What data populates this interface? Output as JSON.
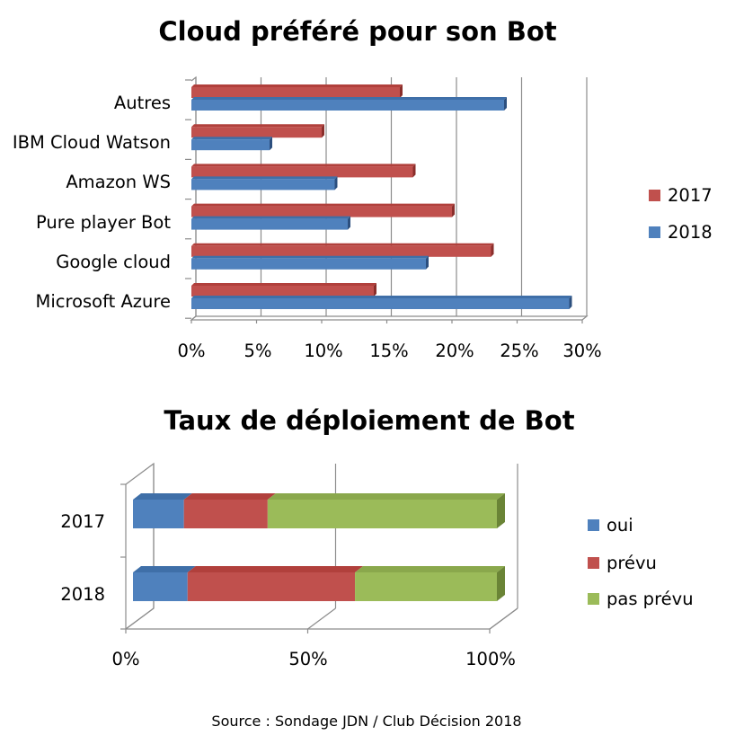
{
  "footer": {
    "source": "Source : Sondage JDN / Club Décision 2018"
  },
  "colors": {
    "red": "#c0504d",
    "red_top": "#b1403c",
    "red_side": "#8a2e2b",
    "blue": "#4f81bd",
    "blue_top": "#3f6fa8",
    "blue_side": "#2c4f7e",
    "green": "#9bbb59",
    "green_top": "#8aa84c",
    "green_side": "#6a8436",
    "grid": "#8c8c8c"
  },
  "chart_data": [
    {
      "type": "bar",
      "orientation": "horizontal",
      "title": "Cloud préféré pour son Bot",
      "categories": [
        "Autres",
        "IBM Cloud Watson",
        "Amazon WS",
        "Pure player Bot",
        "Google cloud",
        "Microsoft Azure"
      ],
      "series": [
        {
          "name": "2017",
          "color": "#c0504d",
          "values": [
            16,
            10,
            17,
            20,
            23,
            14
          ]
        },
        {
          "name": "2018",
          "color": "#4f81bd",
          "values": [
            24,
            6,
            11,
            12,
            18,
            29
          ]
        }
      ],
      "xlim": [
        0,
        30
      ],
      "xticks": [
        "0%",
        "5%",
        "10%",
        "15%",
        "20%",
        "25%",
        "30%"
      ],
      "legend": [
        "2017",
        "2018"
      ],
      "legend_position": "right",
      "grid": true
    },
    {
      "type": "bar",
      "orientation": "horizontal",
      "stacked": "percent",
      "title": "Taux de déploiement de Bot",
      "categories": [
        "2017",
        "2018"
      ],
      "series": [
        {
          "name": "oui",
          "color": "#4f81bd",
          "values": [
            14,
            15
          ]
        },
        {
          "name": "prévu",
          "color": "#c0504d",
          "values": [
            23,
            46
          ]
        },
        {
          "name": "pas prévu",
          "color": "#9bbb59",
          "values": [
            63,
            39
          ]
        }
      ],
      "xlim": [
        0,
        100
      ],
      "xticks": [
        "0%",
        "50%",
        "100%"
      ],
      "legend": [
        "oui",
        "prévu",
        "pas prévu"
      ],
      "legend_position": "right",
      "grid": true
    }
  ]
}
